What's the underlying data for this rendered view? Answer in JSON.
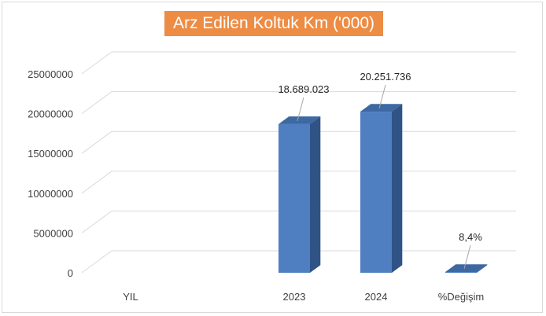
{
  "chart_data": {
    "type": "bar",
    "title": "Arz Edilen Koltuk Km ('000)",
    "categories": [
      "YIL",
      "2023",
      "2024",
      "%Değişim"
    ],
    "values": [
      0,
      18689023,
      20251736,
      8.4
    ],
    "data_labels": [
      "",
      "18.689.023",
      "20.251.736",
      "8,4%"
    ],
    "yticks": [
      "0",
      "5000000",
      "10000000",
      "15000000",
      "20000000",
      "25000000"
    ],
    "ylim": [
      0,
      25000000
    ],
    "grid": true,
    "legend": "none",
    "style": "3d-column"
  },
  "colors": {
    "title_bg": "#ed8c44",
    "bar_front": "#4f7fc1",
    "bar_side": "#2f5385",
    "bar_top": "#3e68a2",
    "grid": "#d9d9d9"
  }
}
